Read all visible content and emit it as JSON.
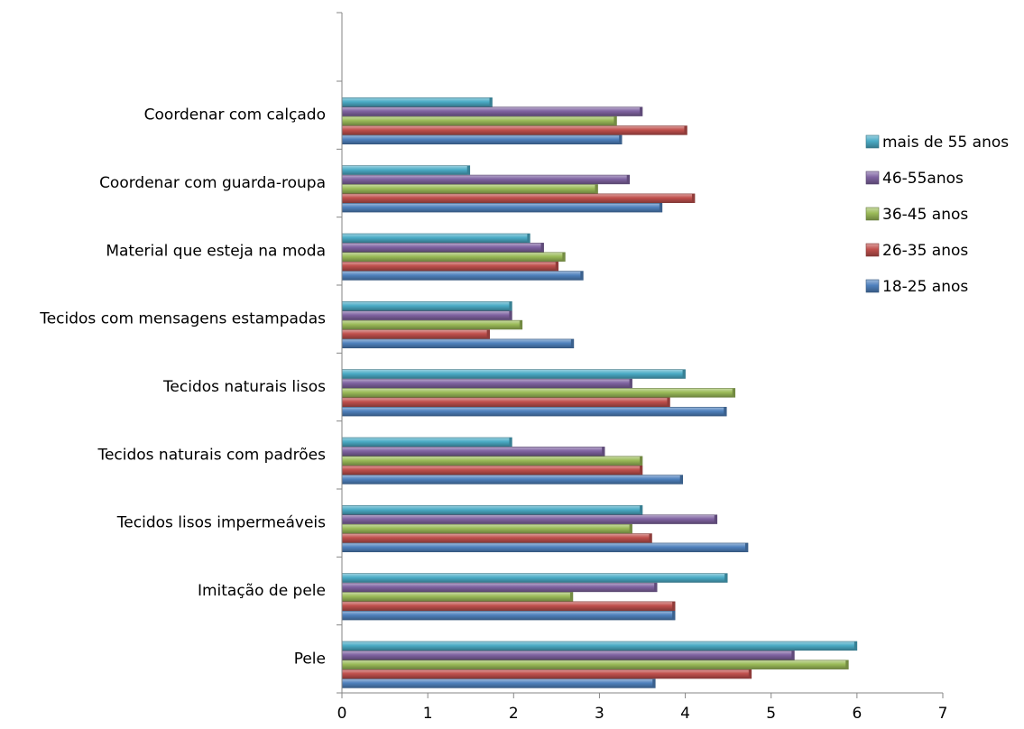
{
  "chart_data": {
    "type": "bar",
    "orientation": "horizontal",
    "categories": [
      "Pele",
      "Imitação de pele",
      "Tecidos lisos impermeáveis",
      "Tecidos naturais com padrões",
      "Tecidos naturais lisos",
      "Tecidos com mensagens estampadas",
      "Material que esteja na moda",
      "Coordenar com guarda-roupa",
      "Coordenar com calçado"
    ],
    "series": [
      {
        "name": "18-25 anos",
        "color": "#4F81BD",
        "values": [
          3.65,
          3.88,
          4.73,
          3.97,
          4.48,
          2.7,
          2.81,
          3.73,
          3.26
        ]
      },
      {
        "name": "26-35 anos",
        "color": "#C0504D",
        "values": [
          4.77,
          3.88,
          3.61,
          3.5,
          3.82,
          1.72,
          2.52,
          4.11,
          4.02
        ]
      },
      {
        "name": "36-45 anos",
        "color": "#9BBB59",
        "values": [
          5.9,
          2.69,
          3.38,
          3.5,
          4.58,
          2.1,
          2.6,
          2.98,
          3.2
        ]
      },
      {
        "name": "46-55anos",
        "color": "#8064A2",
        "values": [
          5.27,
          3.67,
          4.37,
          3.06,
          3.38,
          1.98,
          2.35,
          3.35,
          3.5
        ]
      },
      {
        "name": "mais de 55 anos",
        "color": "#4BACC6",
        "values": [
          6.0,
          4.49,
          3.5,
          1.98,
          4.0,
          1.98,
          2.19,
          1.49,
          1.75
        ]
      }
    ],
    "xlim": [
      0,
      7
    ],
    "xticks": [
      "0",
      "1",
      "2",
      "3",
      "4",
      "5",
      "6",
      "7"
    ],
    "title": "",
    "xlabel": "",
    "ylabel": "",
    "grid": false,
    "legend_position": "right"
  }
}
